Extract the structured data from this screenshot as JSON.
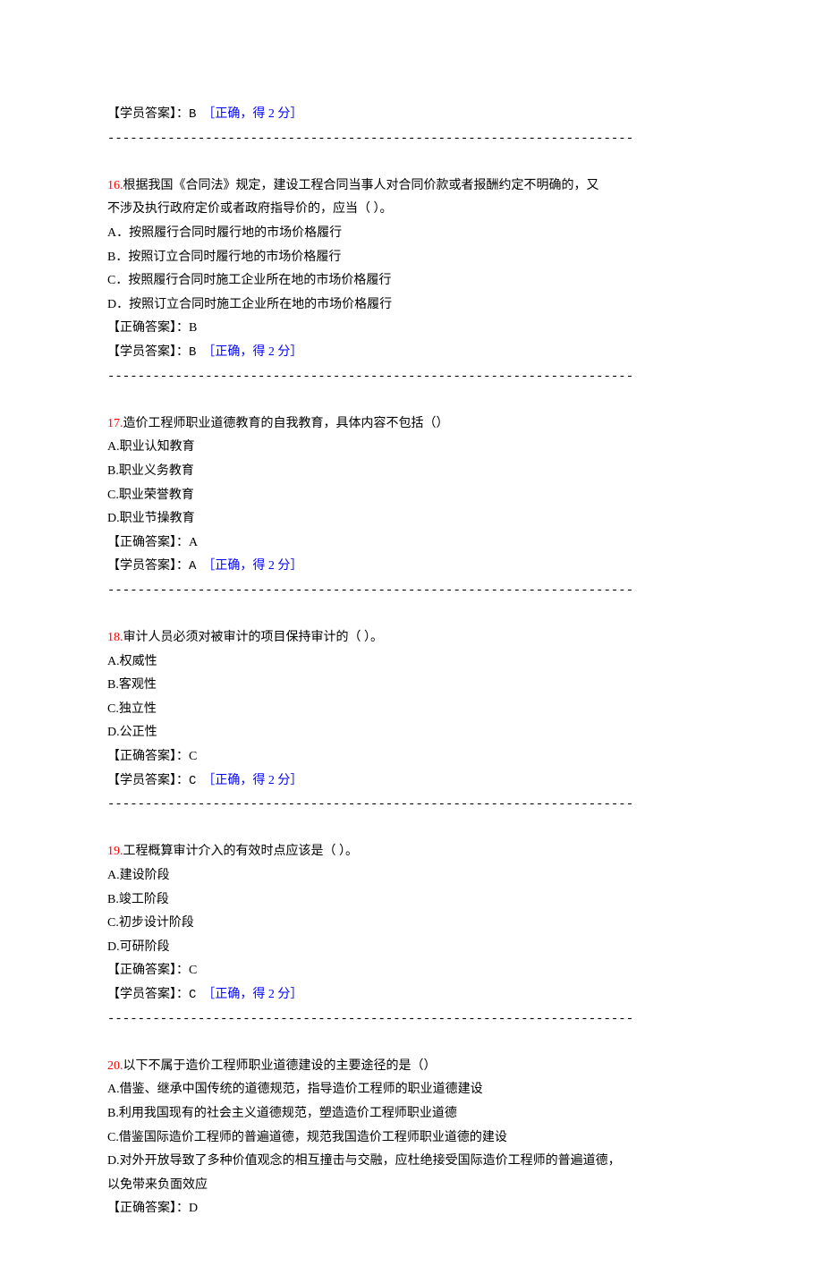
{
  "top": {
    "student_label": "【学员答案】：",
    "student_answer": "B",
    "score_text": "［正确，得 2 分］"
  },
  "divider": "----------------------------------------------------------------------",
  "questions": [
    {
      "num": "16.",
      "stem_lines": [
        "根据我国《合同法》规定，建设工程合同当事人对合同价款或者报酬约定不明确的，又",
        "不涉及执行政府定价或者政府指导价的，应当（ ）。"
      ],
      "options": [
        "A．按照履行合同时履行地的市场价格履行",
        "B．按照订立合同时履行地的市场价格履行",
        "C．按照履行合同时施工企业所在地的市场价格履行",
        "D．按照订立合同时施工企业所在地的市场价格履行"
      ],
      "correct_label": "【正确答案】：",
      "correct": "B",
      "student_label": "【学员答案】：",
      "student": "B",
      "score_text": "［正确，得 2 分］"
    },
    {
      "num": "17.",
      "stem_lines": [
        "造价工程师职业道德教育的自我教育，具体内容不包括（）"
      ],
      "options": [
        "A.职业认知教育",
        "B.职业义务教育",
        "C.职业荣誉教育",
        "D.职业节操教育"
      ],
      "correct_label": "【正确答案】：",
      "correct": "A",
      "student_label": "【学员答案】：",
      "student": "A",
      "score_text": "［正确，得 2 分］"
    },
    {
      "num": "18.",
      "stem_lines": [
        "审计人员必须对被审计的项目保持审计的（ ）。"
      ],
      "options": [
        "A.权威性",
        "B.客观性",
        "C.独立性",
        "D.公正性"
      ],
      "correct_label": "【正确答案】：",
      "correct": "C",
      "student_label": "【学员答案】：",
      "student": "C",
      "score_text": "［正确，得 2 分］"
    },
    {
      "num": "19.",
      "stem_lines": [
        "工程概算审计介入的有效时点应该是（ ）。"
      ],
      "options": [
        "A.建设阶段",
        "B.竣工阶段",
        "C.初步设计阶段",
        "D.可研阶段"
      ],
      "correct_label": "【正确答案】：",
      "correct": "C",
      "student_label": "【学员答案】：",
      "student": "C",
      "score_text": "［正确，得 2 分］"
    },
    {
      "num": "20.",
      "stem_lines": [
        "以下不属于造价工程师职业道德建设的主要途径的是（）"
      ],
      "options": [
        "A.借鉴、继承中国传统的道德规范，指导造价工程师的职业道德建设",
        "B.利用我国现有的社会主义道德规范，塑造造价工程师职业道德",
        "C.借鉴国际造价工程师的普遍道德，规范我国造价工程师职业道德的建设",
        "D.对外开放导致了多种价值观念的相互撞击与交融，应杜绝接受国际造价工程师的普遍道德，",
        "以免带来负面效应"
      ],
      "correct_label": "【正确答案】：",
      "correct": "D",
      "student_label": "",
      "student": "",
      "score_text": ""
    }
  ]
}
